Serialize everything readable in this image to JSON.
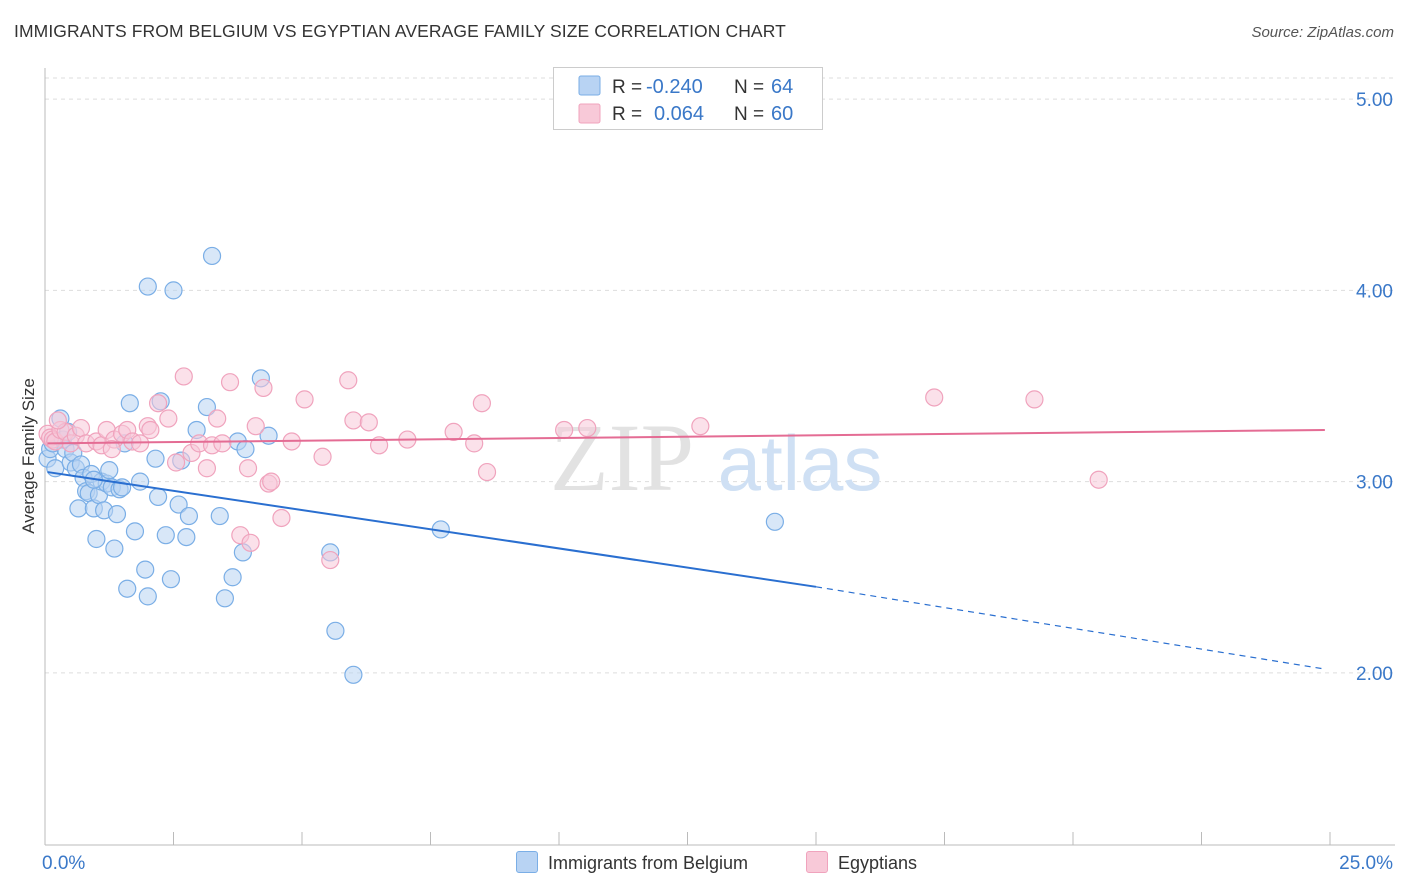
{
  "header": {
    "title": "IMMIGRANTS FROM BELGIUM VS EGYPTIAN AVERAGE FAMILY SIZE CORRELATION CHART",
    "source": "Source: ZipAtlas.com"
  },
  "watermark": {
    "zip": "ZIP",
    "atlas": "atlas"
  },
  "legend_top": {
    "rows": [
      {
        "r_label": "R =",
        "r_value": "-0.240",
        "n_label": "N =",
        "n_value": "64"
      },
      {
        "r_label": "R =",
        "r_value": "0.064",
        "n_label": "N =",
        "n_value": "60"
      }
    ]
  },
  "colors": {
    "blue": "#7aaee6",
    "blue_fill": "#b8d3f3",
    "blue_line": "#2a6fd0",
    "pink": "#f0a3bd",
    "pink_fill": "#f8c9d8",
    "pink_line": "#e46c94",
    "axis_text": "#3a78c8",
    "grid": "#dddddd"
  },
  "chart_data": {
    "type": "scatter",
    "title": "IMMIGRANTS FROM BELGIUM VS EGYPTIAN AVERAGE FAMILY SIZE CORRELATION CHART",
    "xlabel": "",
    "ylabel": "Average Family Size",
    "xlim": [
      0,
      25
    ],
    "ylim": [
      1.1,
      5.1
    ],
    "x_tick_labels": [
      {
        "value": 0,
        "label": "0.0%"
      },
      {
        "value": 25,
        "label": "25.0%"
      }
    ],
    "y_ticks": [
      {
        "value": 2.0,
        "label": "2.00"
      },
      {
        "value": 3.0,
        "label": "3.00"
      },
      {
        "value": 4.0,
        "label": "4.00"
      },
      {
        "value": 5.0,
        "label": "5.00"
      }
    ],
    "grid": "horizontal dashed",
    "legend_placement": "bottom-center",
    "series": [
      {
        "name": "Immigrants from Belgium",
        "color": "#7aaee6",
        "r": -0.24,
        "n": 64,
        "trend": {
          "x_start": 0.05,
          "y_start": 3.05,
          "x_solid_end": 15.0,
          "y_solid_end": 2.45,
          "x_end": 24.9,
          "y_end": 2.02
        },
        "points": [
          [
            0.05,
            3.12
          ],
          [
            0.1,
            3.17
          ],
          [
            0.15,
            3.2
          ],
          [
            0.2,
            3.07
          ],
          [
            0.3,
            3.33
          ],
          [
            0.35,
            3.22
          ],
          [
            0.4,
            3.17
          ],
          [
            0.45,
            3.26
          ],
          [
            0.5,
            3.1
          ],
          [
            0.55,
            3.15
          ],
          [
            0.6,
            3.07
          ],
          [
            0.65,
            2.86
          ],
          [
            0.7,
            3.09
          ],
          [
            0.75,
            3.02
          ],
          [
            0.8,
            2.95
          ],
          [
            0.85,
            2.94
          ],
          [
            0.9,
            3.04
          ],
          [
            0.95,
            2.86
          ],
          [
            1.0,
            2.7
          ],
          [
            1.05,
            2.93
          ],
          [
            1.1,
            3.0
          ],
          [
            1.15,
            2.85
          ],
          [
            1.2,
            2.99
          ],
          [
            1.25,
            3.06
          ],
          [
            1.3,
            2.97
          ],
          [
            1.35,
            2.65
          ],
          [
            1.4,
            2.83
          ],
          [
            1.45,
            2.96
          ],
          [
            1.5,
            2.97
          ],
          [
            1.55,
            3.2
          ],
          [
            1.6,
            2.44
          ],
          [
            1.65,
            3.41
          ],
          [
            1.75,
            2.74
          ],
          [
            1.85,
            3.0
          ],
          [
            1.95,
            2.54
          ],
          [
            2.0,
            2.4
          ],
          [
            2.15,
            3.12
          ],
          [
            2.2,
            2.92
          ],
          [
            2.25,
            3.42
          ],
          [
            2.35,
            2.72
          ],
          [
            2.45,
            2.49
          ],
          [
            2.5,
            4.0
          ],
          [
            2.6,
            2.88
          ],
          [
            2.65,
            3.11
          ],
          [
            2.75,
            2.71
          ],
          [
            2.8,
            2.82
          ],
          [
            2.95,
            3.27
          ],
          [
            3.15,
            3.39
          ],
          [
            3.25,
            4.18
          ],
          [
            3.4,
            2.82
          ],
          [
            3.5,
            2.39
          ],
          [
            3.65,
            2.5
          ],
          [
            3.75,
            3.21
          ],
          [
            3.85,
            2.63
          ],
          [
            3.9,
            3.17
          ],
          [
            4.2,
            3.54
          ],
          [
            4.35,
            3.24
          ],
          [
            5.55,
            2.63
          ],
          [
            5.65,
            2.22
          ],
          [
            6.0,
            1.99
          ],
          [
            7.7,
            2.75
          ],
          [
            14.2,
            2.79
          ],
          [
            0.95,
            3.01
          ],
          [
            2.0,
            4.02
          ]
        ]
      },
      {
        "name": "Egyptians",
        "color": "#f0a3bd",
        "r": 0.064,
        "n": 60,
        "trend": {
          "x_start": 0.05,
          "y_start": 3.2,
          "x_end": 24.9,
          "y_end": 3.27
        },
        "points": [
          [
            0.05,
            3.25
          ],
          [
            0.1,
            3.23
          ],
          [
            0.15,
            3.22
          ],
          [
            0.2,
            3.21
          ],
          [
            0.3,
            3.27
          ],
          [
            0.4,
            3.26
          ],
          [
            0.5,
            3.2
          ],
          [
            0.6,
            3.24
          ],
          [
            0.7,
            3.28
          ],
          [
            0.8,
            3.2
          ],
          [
            1.0,
            3.21
          ],
          [
            1.1,
            3.19
          ],
          [
            1.2,
            3.27
          ],
          [
            1.35,
            3.22
          ],
          [
            1.5,
            3.25
          ],
          [
            1.6,
            3.27
          ],
          [
            1.7,
            3.21
          ],
          [
            1.85,
            3.2
          ],
          [
            2.0,
            3.29
          ],
          [
            2.2,
            3.41
          ],
          [
            2.4,
            3.33
          ],
          [
            2.55,
            3.1
          ],
          [
            2.7,
            3.55
          ],
          [
            2.85,
            3.15
          ],
          [
            3.0,
            3.2
          ],
          [
            3.15,
            3.07
          ],
          [
            3.25,
            3.19
          ],
          [
            3.35,
            3.33
          ],
          [
            3.6,
            3.52
          ],
          [
            3.8,
            2.72
          ],
          [
            3.95,
            3.07
          ],
          [
            4.0,
            2.68
          ],
          [
            4.25,
            3.49
          ],
          [
            4.35,
            2.99
          ],
          [
            4.6,
            2.81
          ],
          [
            4.8,
            3.21
          ],
          [
            5.05,
            3.43
          ],
          [
            5.4,
            3.13
          ],
          [
            5.55,
            2.59
          ],
          [
            5.9,
            3.53
          ],
          [
            6.0,
            3.32
          ],
          [
            6.3,
            3.31
          ],
          [
            6.5,
            3.19
          ],
          [
            7.05,
            3.22
          ],
          [
            7.95,
            3.26
          ],
          [
            8.35,
            3.2
          ],
          [
            8.5,
            3.41
          ],
          [
            8.6,
            3.05
          ],
          [
            10.1,
            3.27
          ],
          [
            10.55,
            3.28
          ],
          [
            12.75,
            3.29
          ],
          [
            17.3,
            3.44
          ],
          [
            19.25,
            3.43
          ],
          [
            20.5,
            3.01
          ],
          [
            4.1,
            3.29
          ],
          [
            1.3,
            3.17
          ],
          [
            2.05,
            3.27
          ],
          [
            3.45,
            3.2
          ],
          [
            4.4,
            3.0
          ],
          [
            0.25,
            3.32
          ]
        ]
      }
    ]
  }
}
